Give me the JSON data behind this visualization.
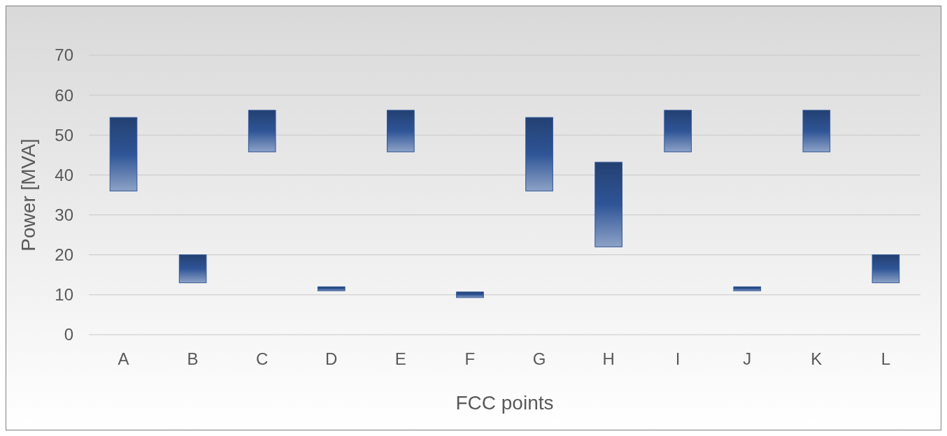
{
  "chart_data": {
    "type": "bar",
    "xlabel": "FCC points",
    "ylabel": "Power [MVA]",
    "categories": [
      "A",
      "B",
      "C",
      "D",
      "E",
      "F",
      "G",
      "H",
      "I",
      "J",
      "K",
      "L"
    ],
    "series": [
      {
        "color": "#2f5597",
        "values": [
          18.4,
          7,
          10.4,
          1,
          10.4,
          1.4,
          18.4,
          21.2,
          10.4,
          1,
          10.4,
          7
        ],
        "base": [
          36,
          13,
          45.8,
          11,
          45.8,
          9.3,
          36,
          22,
          45.8,
          11,
          45.8,
          13
        ]
      }
    ],
    "ylim": [
      0,
      70
    ],
    "yticks": [
      0,
      10,
      20,
      30,
      40,
      50,
      60,
      70
    ],
    "grid": "y"
  }
}
